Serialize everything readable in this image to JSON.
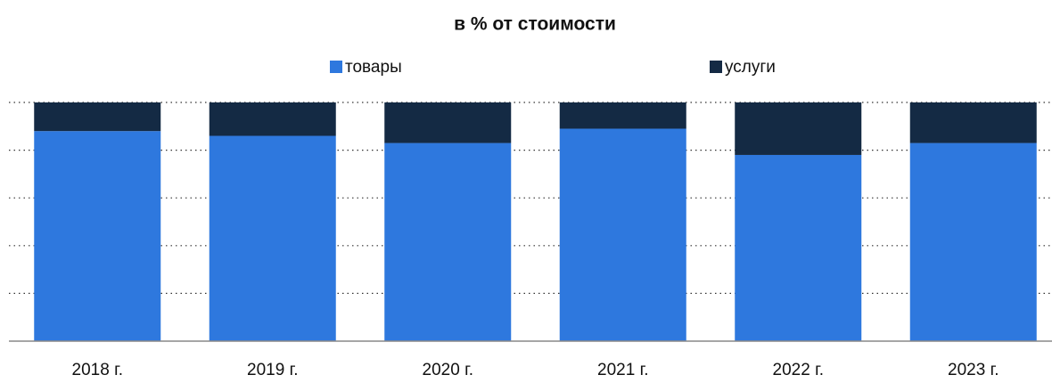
{
  "chart_data": {
    "type": "stacked_bar",
    "title": "в % от стоимости",
    "categories": [
      "2018 г.",
      "2019 г.",
      "2020 г.",
      "2021 г.",
      "2022 г.",
      "2023 г."
    ],
    "series": [
      {
        "name": "товары",
        "color": "#2e78de",
        "values": [
          88,
          86,
          83,
          89,
          78,
          83
        ]
      },
      {
        "name": "услуги",
        "color": "#142a44",
        "values": [
          12,
          14,
          17,
          11,
          22,
          17
        ]
      }
    ],
    "ylim": [
      0,
      100
    ],
    "yticks": [
      0,
      20,
      40,
      60,
      80,
      100
    ],
    "grid": true,
    "legend": "top"
  }
}
